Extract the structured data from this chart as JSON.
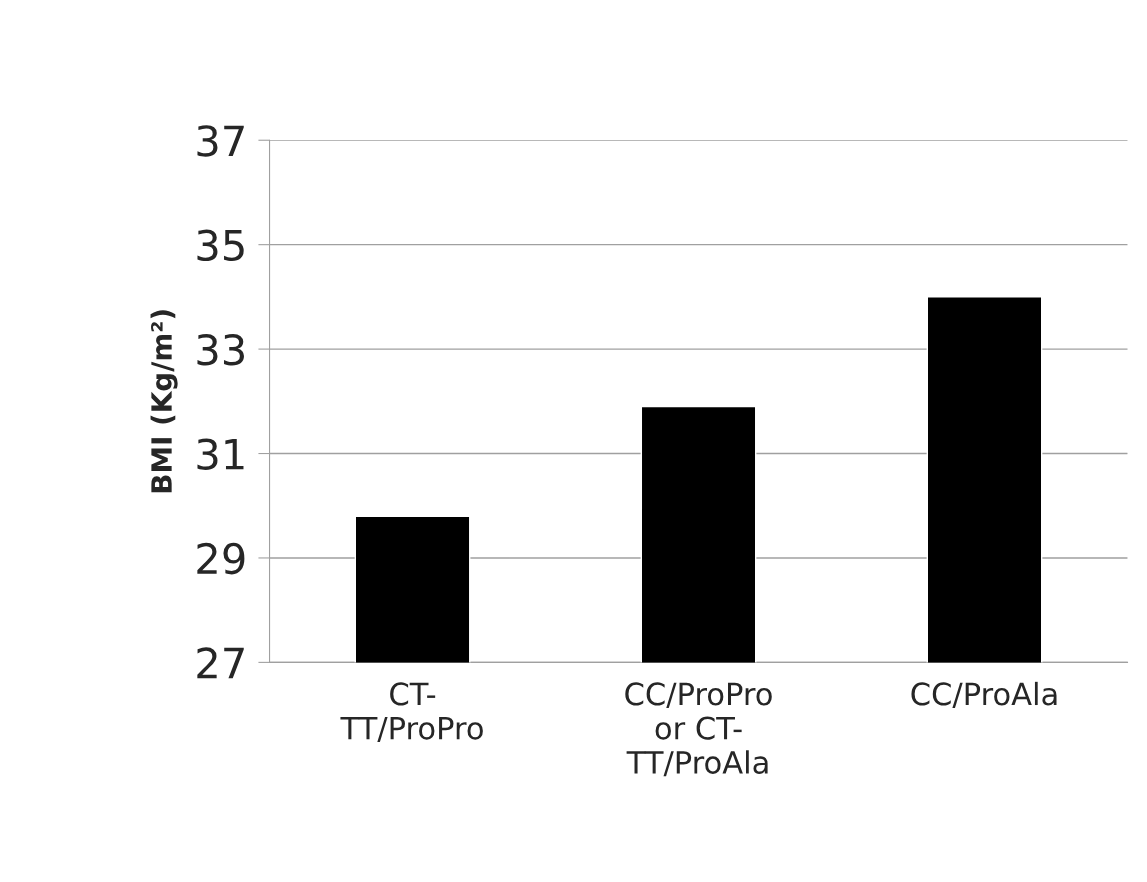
{
  "chart_data": {
    "type": "bar",
    "ylabel": "BMI (Kg/m²)",
    "categories": [
      "CT-\nTT/ProPro",
      "CC/ProPro\nor CT-\nTT/ProAla",
      "CC/ProAla"
    ],
    "values": [
      29.8,
      31.9,
      34.0
    ],
    "color": "#000000",
    "ylim": [
      27,
      37
    ],
    "yticks": [
      27,
      29,
      31,
      33,
      35,
      37
    ],
    "grid": "y"
  }
}
